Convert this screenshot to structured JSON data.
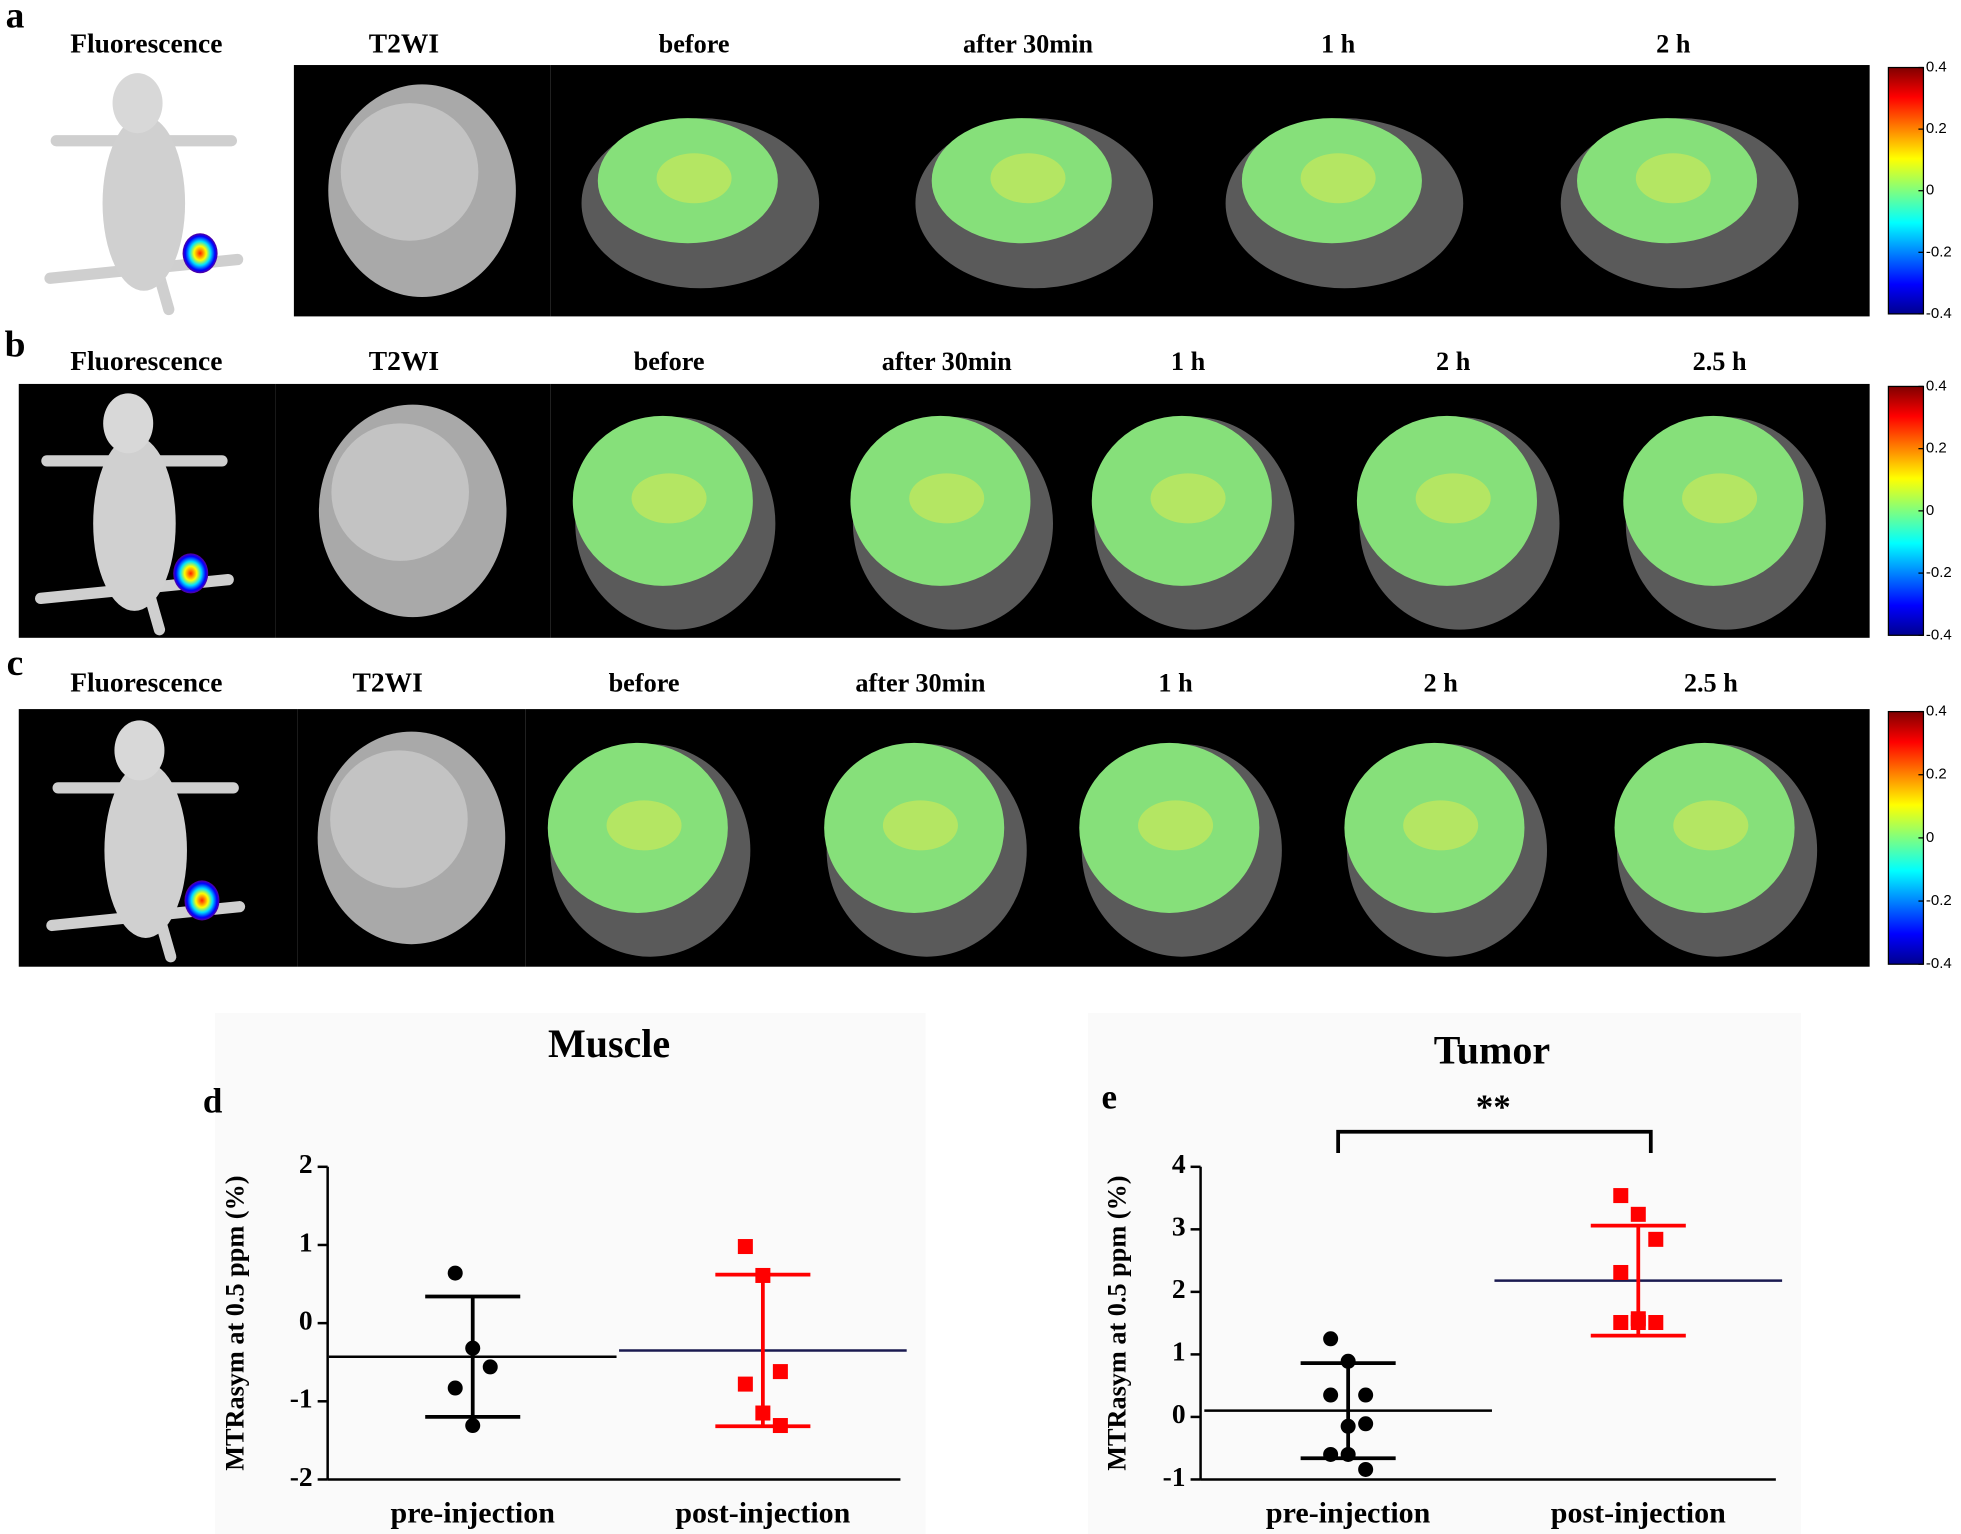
{
  "panels": [
    {
      "label": "a",
      "headers": [
        "Fluorescence",
        "T2WI",
        "before",
        "after 30min",
        "1 h",
        "2 h"
      ],
      "colorbar": {
        "range": [
          -0.4,
          0.4
        ],
        "ticks": [
          0.4,
          0.2,
          0,
          -0.2,
          -0.4
        ]
      }
    },
    {
      "label": "b",
      "headers": [
        "Fluorescence",
        "T2WI",
        "before",
        "after 30min",
        "1 h",
        "2 h",
        "2.5 h"
      ],
      "colorbar": {
        "range": [
          -0.4,
          0.4
        ],
        "ticks": [
          0.4,
          0.2,
          0,
          -0.2,
          -0.4
        ]
      }
    },
    {
      "label": "c",
      "headers": [
        "Fluorescence",
        "T2WI",
        "before",
        "after 30min",
        "1 h",
        "2 h",
        "2.5 h"
      ],
      "colorbar": {
        "range": [
          -0.4,
          0.4
        ],
        "ticks": [
          0.4,
          0.2,
          0,
          -0.2,
          -0.4
        ]
      }
    }
  ],
  "chart_data": [
    {
      "type": "scatter",
      "panel_label": "d",
      "title": "Muscle",
      "ylabel": "MTRasym at 0.5 ppm (%)",
      "categories": [
        "pre-injection",
        "post-injection"
      ],
      "ylim": [
        -2,
        2
      ],
      "yticks": [
        -2,
        -1,
        0,
        1,
        2
      ],
      "series": [
        {
          "color": "#000000",
          "marker": "circle",
          "values": [
            0.64,
            -0.32,
            -0.56,
            -0.83,
            -1.31
          ],
          "mean": -0.43,
          "sd": 0.77
        },
        {
          "color": "#ff0000",
          "marker": "square",
          "values": [
            0.98,
            0.61,
            -0.62,
            -0.78,
            -1.15,
            -1.31
          ],
          "mean": -0.35,
          "sd": 0.97
        }
      ]
    },
    {
      "type": "scatter",
      "panel_label": "e",
      "title": "Tumor",
      "ylabel": "MTRasym at 0.5 ppm (%)",
      "categories": [
        "pre-injection",
        "post-injection"
      ],
      "ylim": [
        -1,
        4
      ],
      "yticks": [
        -1,
        0,
        1,
        2,
        3,
        4
      ],
      "annotation": "**",
      "series": [
        {
          "color": "#000000",
          "marker": "circle",
          "values": [
            1.25,
            0.89,
            0.35,
            0.35,
            -0.15,
            -0.11,
            -0.6,
            -0.6,
            -0.84
          ],
          "mean": 0.1,
          "sd": 0.76
        },
        {
          "color": "#ff0000",
          "marker": "square",
          "values": [
            3.54,
            3.24,
            2.84,
            2.31,
            1.51,
            1.51,
            1.51,
            1.57
          ],
          "mean": 2.18,
          "sd": 0.88
        }
      ]
    }
  ]
}
